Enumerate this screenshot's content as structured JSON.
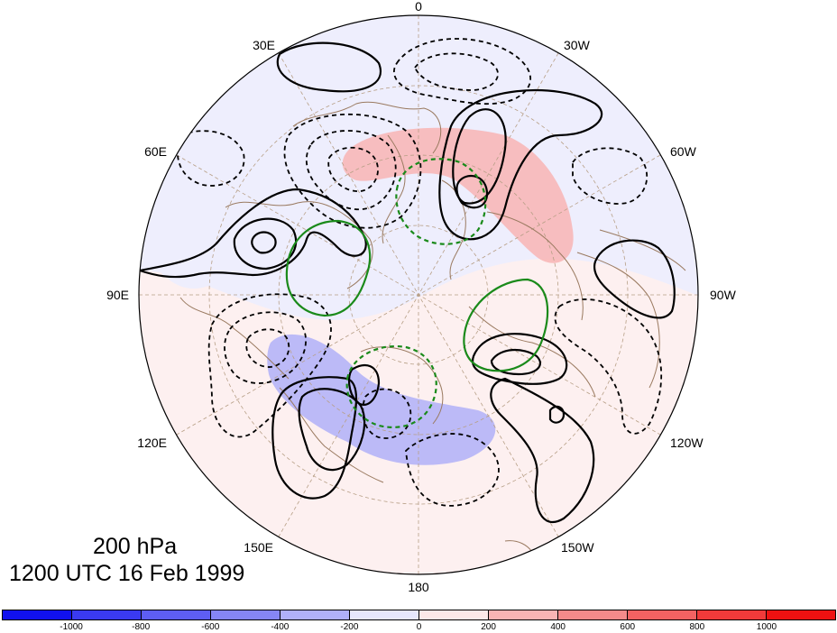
{
  "caption": {
    "level": "200 hPa",
    "time": "1200 UTC 16 Feb 1999"
  },
  "longitude_labels": [
    {
      "id": "lon-0",
      "text": "0"
    },
    {
      "id": "lon-30w",
      "text": "30W"
    },
    {
      "id": "lon-60w",
      "text": "60W"
    },
    {
      "id": "lon-90w",
      "text": "90W"
    },
    {
      "id": "lon-120w",
      "text": "120W"
    },
    {
      "id": "lon-150w",
      "text": "150W"
    },
    {
      "id": "lon-180",
      "text": "180"
    },
    {
      "id": "lon-150e",
      "text": "150E"
    },
    {
      "id": "lon-120e",
      "text": "120E"
    },
    {
      "id": "lon-90e",
      "text": "90E"
    },
    {
      "id": "lon-60e",
      "text": "60E"
    },
    {
      "id": "lon-30e",
      "text": "30E"
    }
  ],
  "colorbar": {
    "colors": [
      "#1111ee",
      "#3a3af0",
      "#5e5ef3",
      "#8585f5",
      "#b0b0f8",
      "#e6e6fd",
      "#fde8e8",
      "#f8b4b4",
      "#f58a8a",
      "#f36262",
      "#f03a3a",
      "#ee1111"
    ],
    "tick_labels": [
      "-1000",
      "-800",
      "-600",
      "-400",
      "-200",
      "0",
      "200",
      "400",
      "600",
      "800",
      "1000"
    ]
  }
}
